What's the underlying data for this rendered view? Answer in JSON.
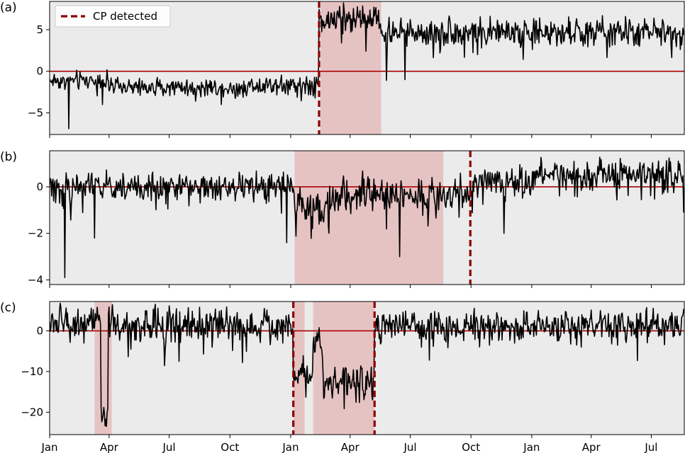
{
  "chart_data": [
    {
      "type": "line",
      "panel_label": "(a)",
      "x_range": [
        "2021-01-01",
        "2022-08-20"
      ],
      "ylim": [
        -7.6,
        8.4
      ],
      "yticks": [
        -5,
        0,
        5
      ],
      "zero_line": 0,
      "background_color": "#ebebeb",
      "shade_color": "#e6c3c3",
      "line_color": "#000000",
      "cp_color": "#8b0000",
      "legend": {
        "label": "CP detected",
        "placement": "top-left"
      },
      "shaded_regions": [
        [
          "2022-02-15",
          "2022-05-18"
        ]
      ],
      "change_points": [
        "2022-02-13"
      ],
      "segments": [
        {
          "start": "2021-01-01",
          "end": "2021-04-01",
          "mean": -1.1,
          "noise": 0.5
        },
        {
          "start": "2021-04-01",
          "end": "2021-11-01",
          "mean": -1.9,
          "noise": 0.45
        },
        {
          "start": "2021-11-01",
          "end": "2022-02-13",
          "mean": -1.6,
          "noise": 0.55
        },
        {
          "start": "2022-02-13",
          "end": "2022-05-18",
          "mean": 6.3,
          "noise": 0.8
        },
        {
          "start": "2022-05-18",
          "end": "2022-08-20",
          "mean": 4.7,
          "noise": 0.8
        }
      ],
      "spikes": [
        {
          "date": "2021-01-30",
          "value": -6.9
        },
        {
          "date": "2021-03-22",
          "value": -4.0
        },
        {
          "date": "2021-09-18",
          "value": -4.0
        },
        {
          "date": "2022-05-26",
          "value": -1.1
        },
        {
          "date": "2022-06-23",
          "value": -1.0
        },
        {
          "date": "2022-08-15",
          "value": 2.2
        }
      ]
    },
    {
      "type": "line",
      "panel_label": "(b)",
      "x_range": [
        "2021-01-01",
        "2022-08-20"
      ],
      "ylim": [
        -4.2,
        1.55
      ],
      "yticks": [
        -4,
        -2,
        0
      ],
      "zero_line": 0,
      "background_color": "#ebebeb",
      "shade_color": "#e6c3c3",
      "line_color": "#000000",
      "cp_color": "#8b0000",
      "shaded_regions": [
        [
          "2022-01-07",
          "2022-08-20"
        ]
      ],
      "change_points": [
        "2022-09-30"
      ],
      "segments": [
        {
          "start": "2021-01-01",
          "end": "2022-01-07",
          "mean": 0.0,
          "noise": 0.28
        },
        {
          "start": "2022-01-07",
          "end": "2022-03-15",
          "mean": -0.8,
          "noise": 0.4
        },
        {
          "start": "2022-03-15",
          "end": "2022-09-30",
          "mean": -0.35,
          "noise": 0.35
        },
        {
          "start": "2022-09-30",
          "end": "2023-01-01",
          "mean": 0.2,
          "noise": 0.3
        },
        {
          "start": "2023-01-01",
          "end": "2023-08-20",
          "mean": 0.55,
          "noise": 0.3
        }
      ],
      "spikes": [
        {
          "date": "2021-01-24",
          "value": -3.9
        },
        {
          "date": "2021-03-10",
          "value": -2.2
        },
        {
          "date": "2021-12-26",
          "value": -2.4
        },
        {
          "date": "2022-06-15",
          "value": -3.0
        },
        {
          "date": "2022-11-20",
          "value": -2.0
        }
      ]
    },
    {
      "type": "line",
      "panel_label": "(c)",
      "x_range": [
        "2021-01-01",
        "2022-08-20"
      ],
      "ylim": [
        -25.5,
        7.2
      ],
      "yticks": [
        -20,
        -10,
        0
      ],
      "zero_line": 0,
      "background_color": "#ebebeb",
      "shade_color": "#e6c3c3",
      "line_color": "#000000",
      "cp_color": "#8b0000",
      "shaded_regions": [
        [
          "2021-03-10",
          "2021-04-05"
        ],
        [
          "2022-01-05",
          "2022-01-22"
        ],
        [
          "2022-02-04",
          "2022-05-08"
        ]
      ],
      "change_points": [
        "2022-01-05",
        "2022-05-08"
      ],
      "segments": [
        {
          "start": "2021-01-01",
          "end": "2021-03-20",
          "mean": 2.0,
          "noise": 1.8
        },
        {
          "start": "2021-03-20",
          "end": "2021-03-31",
          "mean": -21.0,
          "noise": 1.0
        },
        {
          "start": "2021-03-31",
          "end": "2022-01-05",
          "mean": 1.5,
          "noise": 2.0
        },
        {
          "start": "2022-01-05",
          "end": "2022-02-04",
          "mean": -10.0,
          "noise": 2.0
        },
        {
          "start": "2022-02-04",
          "end": "2022-02-20",
          "mean": -3.0,
          "noise": 2.0
        },
        {
          "start": "2022-02-20",
          "end": "2022-05-08",
          "mean": -12.5,
          "noise": 2.0
        },
        {
          "start": "2022-05-08",
          "end": "2023-08-20",
          "mean": 1.2,
          "noise": 1.8
        }
      ],
      "spikes": [
        {
          "date": "2021-03-28",
          "value": -23.5
        },
        {
          "date": "2021-07-16",
          "value": -7.5
        },
        {
          "date": "2021-10-20",
          "value": -7.8
        },
        {
          "date": "2022-07-30",
          "value": -7.2
        },
        {
          "date": "2023-06-10",
          "value": -7.3
        }
      ]
    }
  ],
  "x_axis": {
    "ticks": [
      {
        "date": "2021-01-01",
        "label": "Jan"
      },
      {
        "date": "2021-04-01",
        "label": "Apr"
      },
      {
        "date": "2021-07-01",
        "label": "Jul"
      },
      {
        "date": "2021-10-01",
        "label": "Oct"
      },
      {
        "date": "2022-01-01",
        "label": "Jan"
      },
      {
        "date": "2022-04-01",
        "label": "Apr"
      },
      {
        "date": "2022-07-01",
        "label": "Jul"
      },
      {
        "date": "2022-10-01",
        "label": "Oct"
      },
      {
        "date": "2023-01-01",
        "label": "Jan"
      },
      {
        "date": "2023-04-01",
        "label": "Apr"
      },
      {
        "date": "2023-07-01",
        "label": "Jul"
      }
    ],
    "range": [
      "2021-01-01",
      "2023-08-20"
    ]
  }
}
